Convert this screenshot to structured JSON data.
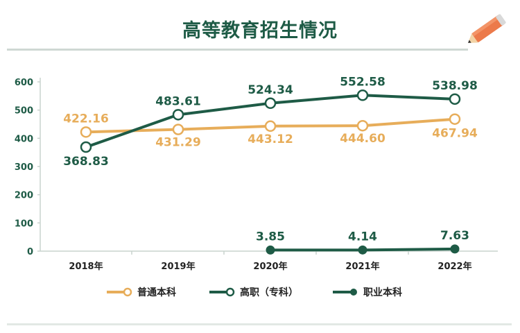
{
  "title": "高等教育招生情况",
  "chart_data": {
    "type": "line",
    "categories": [
      "2018年",
      "2019年",
      "2020年",
      "2021年",
      "2022年"
    ],
    "ylim": [
      0,
      600
    ],
    "yticks": [
      0,
      100,
      200,
      300,
      400,
      500,
      600
    ],
    "series": [
      {
        "name": "普通本科",
        "color": "#e7ad5a",
        "values": [
          422.16,
          431.29,
          443.12,
          444.6,
          467.94
        ],
        "labels": [
          "422.16",
          "431.29",
          "443.12",
          "444.60",
          "467.94"
        ],
        "marker": "hollow"
      },
      {
        "name": "高职（专科）",
        "color": "#1e5b46",
        "values": [
          368.83,
          483.61,
          524.34,
          552.58,
          538.98
        ],
        "labels": [
          "368.83",
          "483.61",
          "524.34",
          "552.58",
          "538.98"
        ],
        "marker": "hollow"
      },
      {
        "name": "职业本科",
        "color": "#1e5b46",
        "values": [
          null,
          null,
          3.85,
          4.14,
          7.63
        ],
        "labels": [
          null,
          null,
          "3.85",
          "4.14",
          "7.63"
        ],
        "marker": "filled"
      }
    ]
  },
  "legend": [
    {
      "label": "普通本科"
    },
    {
      "label": "高职（专科）"
    },
    {
      "label": "职业本科"
    }
  ]
}
